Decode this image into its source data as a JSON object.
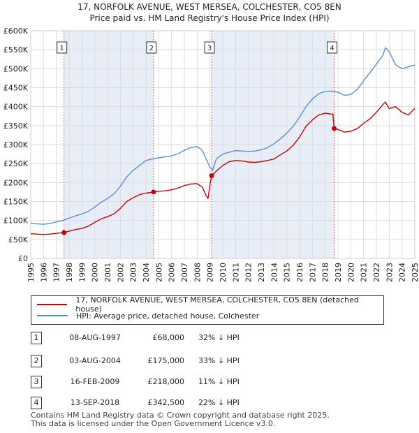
{
  "chart_data": {
    "type": "line",
    "title": "17, NORFOLK AVENUE, WEST MERSEA, COLCHESTER, CO5 8EN",
    "subtitle": "Price paid vs. HM Land Registry's House Price Index (HPI)",
    "xlabel": "",
    "ylabel": "",
    "xlim": [
      1995,
      2025
    ],
    "ylim": [
      0,
      600000
    ],
    "y_ticks": [
      0,
      50000,
      100000,
      150000,
      200000,
      250000,
      300000,
      350000,
      400000,
      450000,
      500000,
      550000,
      600000
    ],
    "y_tick_labels": [
      "£0",
      "£50K",
      "£100K",
      "£150K",
      "£200K",
      "£250K",
      "£300K",
      "£350K",
      "£400K",
      "£450K",
      "£500K",
      "£550K",
      "£600K"
    ],
    "x_ticks": [
      1995,
      1996,
      1997,
      1998,
      1999,
      2000,
      2001,
      2002,
      2003,
      2004,
      2005,
      2006,
      2007,
      2008,
      2009,
      2010,
      2011,
      2012,
      2013,
      2014,
      2015,
      2016,
      2017,
      2018,
      2019,
      2020,
      2021,
      2022,
      2023,
      2024,
      2025
    ],
    "x_tick_labels": [
      "1995",
      "1996",
      "1997",
      "1998",
      "1999",
      "2000",
      "2001",
      "2002",
      "2003",
      "2004",
      "2005",
      "2006",
      "2007",
      "2008",
      "2009",
      "2010",
      "2011",
      "2012",
      "2013",
      "2014",
      "2015",
      "2016",
      "2017",
      "2018",
      "2019",
      "2020",
      "2021",
      "2022",
      "2023",
      "2024",
      "2025"
    ],
    "grid": true,
    "series": [
      {
        "name": "17, NORFOLK AVENUE, WEST MERSEA, COLCHESTER, CO5 8EN (detached house)",
        "color": "#cc0000",
        "x": [
          1995.0,
          1995.5,
          1996.0,
          1996.5,
          1997.0,
          1997.6,
          1998.0,
          1998.5,
          1999.0,
          1999.5,
          2000.0,
          2000.5,
          2001.0,
          2001.5,
          2002.0,
          2002.5,
          2003.0,
          2003.5,
          2004.0,
          2004.59,
          2005.0,
          2005.5,
          2006.0,
          2006.5,
          2007.0,
          2007.5,
          2008.0,
          2008.4,
          2008.7,
          2008.85,
          2009.0,
          2009.13,
          2009.5,
          2010.0,
          2010.5,
          2011.0,
          2011.5,
          2012.0,
          2012.5,
          2013.0,
          2013.5,
          2014.0,
          2014.5,
          2015.0,
          2015.5,
          2016.0,
          2016.5,
          2017.0,
          2017.5,
          2018.0,
          2018.5,
          2018.6,
          2018.7,
          2019.0,
          2019.5,
          2020.0,
          2020.5,
          2021.0,
          2021.5,
          2022.0,
          2022.5,
          2022.7,
          2023.0,
          2023.5,
          2024.0,
          2024.5,
          2025.0
        ],
        "values": [
          65000,
          64000,
          63000,
          64000,
          66000,
          68000,
          72000,
          76000,
          79000,
          85000,
          95000,
          104000,
          110000,
          117000,
          132000,
          150000,
          160000,
          168000,
          172000,
          175000,
          177000,
          178000,
          181000,
          185000,
          192000,
          196000,
          197000,
          188000,
          165000,
          158000,
          195000,
          218000,
          230000,
          245000,
          255000,
          258000,
          257000,
          254000,
          253000,
          255000,
          258000,
          262000,
          273000,
          283000,
          298000,
          320000,
          348000,
          365000,
          378000,
          383000,
          380000,
          381000,
          342500,
          340000,
          333000,
          335000,
          342000,
          356000,
          368000,
          385000,
          405000,
          412000,
          395000,
          400000,
          385000,
          378000,
          395000
        ]
      },
      {
        "name": "HPI: Average price, detached house, Colchester",
        "color": "#5b8fcc",
        "x": [
          1995.0,
          1995.5,
          1996.0,
          1996.5,
          1997.0,
          1997.5,
          1998.0,
          1998.5,
          1999.0,
          1999.5,
          2000.0,
          2000.5,
          2001.0,
          2001.5,
          2002.0,
          2002.5,
          2003.0,
          2003.5,
          2004.0,
          2004.5,
          2005.0,
          2005.5,
          2006.0,
          2006.5,
          2007.0,
          2007.5,
          2008.0,
          2008.4,
          2008.7,
          2009.0,
          2009.2,
          2009.5,
          2010.0,
          2010.5,
          2011.0,
          2011.5,
          2012.0,
          2012.5,
          2013.0,
          2013.5,
          2014.0,
          2014.5,
          2015.0,
          2015.5,
          2016.0,
          2016.5,
          2017.0,
          2017.5,
          2018.0,
          2018.5,
          2019.0,
          2019.5,
          2020.0,
          2020.5,
          2021.0,
          2021.5,
          2022.0,
          2022.5,
          2022.7,
          2023.0,
          2023.5,
          2024.0,
          2024.5,
          2025.0
        ],
        "values": [
          93000,
          91000,
          90000,
          92000,
          96000,
          100000,
          106000,
          112000,
          117000,
          124000,
          135000,
          148000,
          158000,
          170000,
          190000,
          215000,
          232000,
          245000,
          258000,
          262000,
          265000,
          268000,
          270000,
          276000,
          285000,
          292000,
          295000,
          285000,
          262000,
          240000,
          232000,
          262000,
          275000,
          280000,
          284000,
          283000,
          282000,
          283000,
          286000,
          292000,
          302000,
          315000,
          330000,
          348000,
          372000,
          400000,
          420000,
          434000,
          440000,
          441000,
          438000,
          430000,
          432000,
          445000,
          468000,
          490000,
          512000,
          535000,
          555000,
          545000,
          510000,
          500000,
          505000,
          510000
        ]
      }
    ],
    "transactions": [
      {
        "num": "1",
        "x": 1997.6,
        "value": 68000
      },
      {
        "num": "2",
        "x": 2004.59,
        "value": 175000
      },
      {
        "num": "3",
        "x": 2009.13,
        "value": 218000
      },
      {
        "num": "4",
        "x": 2018.7,
        "value": 342500
      }
    ]
  },
  "legend": {
    "property_label": "17, NORFOLK AVENUE, WEST MERSEA, COLCHESTER, CO5 8EN (detached house)",
    "hpi_label": "HPI: Average price, detached house, Colchester"
  },
  "table": [
    {
      "num": "1",
      "date": "08-AUG-1997",
      "price": "£68,000",
      "hpi": "32% ↓ HPI"
    },
    {
      "num": "2",
      "date": "03-AUG-2004",
      "price": "£175,000",
      "hpi": "33% ↓ HPI"
    },
    {
      "num": "3",
      "date": "16-FEB-2009",
      "price": "£218,000",
      "hpi": "11% ↓ HPI"
    },
    {
      "num": "4",
      "date": "13-SEP-2018",
      "price": "£342,500",
      "hpi": "22% ↓ HPI"
    }
  ],
  "footer": {
    "line1": "Contains HM Land Registry data © Crown copyright and database right 2025.",
    "line2": "This data is licensed under the Open Government Licence v3.0."
  },
  "colors": {
    "property": "#cc0000",
    "hpi": "#5b8fcc",
    "shade": "#e8eef8",
    "grid": "#dddddd"
  }
}
